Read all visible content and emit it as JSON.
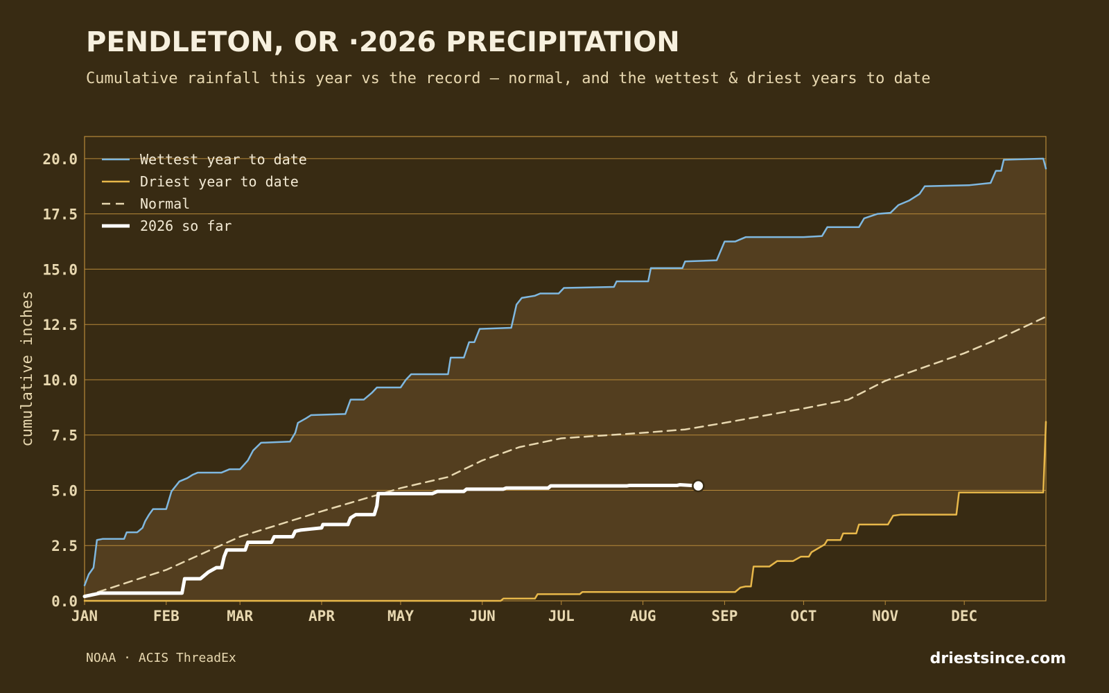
{
  "chart_data": {
    "type": "line",
    "title": "PENDLETON, OR ·2026 PRECIPITATION",
    "subtitle": "Cumulative rainfall this year vs the record — normal, and the wettest & driest years to date",
    "ylabel": "cumulative inches",
    "source": "NOAA · ACIS ThreadEx",
    "site": "driestsince.com",
    "xlim": [
      0,
      365
    ],
    "xticks": [
      {
        "value": 0,
        "label": "JAN"
      },
      {
        "value": 31,
        "label": "FEB"
      },
      {
        "value": 59,
        "label": "MAR"
      },
      {
        "value": 90,
        "label": "APR"
      },
      {
        "value": 120,
        "label": "MAY"
      },
      {
        "value": 151,
        "label": "JUN"
      },
      {
        "value": 181,
        "label": "JUL"
      },
      {
        "value": 212,
        "label": "AUG"
      },
      {
        "value": 243,
        "label": "SEP"
      },
      {
        "value": 273,
        "label": "OCT"
      },
      {
        "value": 304,
        "label": "NOV"
      },
      {
        "value": 334,
        "label": "DEC"
      }
    ],
    "ylim": [
      0,
      21
    ],
    "yticks": [
      {
        "value": 0,
        "label": "0.0"
      },
      2.5,
      {
        "value": 5,
        "label": "5.0"
      },
      7.5,
      {
        "value": 10,
        "label": "10.0"
      },
      12.5,
      {
        "value": 15,
        "label": "15.0"
      },
      17.5,
      {
        "value": 20,
        "label": "20.0"
      }
    ],
    "grid": true,
    "legend": "upper left",
    "range_fill": "#533e1f",
    "series": [
      {
        "name": "Wettest year to date",
        "color": "#7fb8e0",
        "line_style": "solid",
        "line_width": 2.5,
        "x": [
          0,
          1.6,
          3.4,
          4.7,
          6.8,
          15,
          16,
          20,
          22,
          23,
          24.5,
          26,
          31,
          33,
          36,
          39,
          41,
          43,
          52,
          55,
          59,
          62,
          64,
          67,
          78,
          80,
          81,
          84,
          86,
          99,
          101,
          106,
          109,
          111,
          120,
          122,
          124,
          138,
          139,
          144,
          146,
          148,
          150,
          162,
          164,
          166,
          171,
          173,
          180,
          182,
          201,
          202,
          214,
          215,
          227,
          228,
          240,
          243,
          247,
          251,
          273,
          280,
          282,
          294,
          296,
          301,
          306,
          309,
          313,
          317,
          319,
          336,
          344,
          346,
          348,
          349,
          364,
          365
        ],
        "values": [
          0.7,
          1.2,
          1.5,
          2.75,
          2.8,
          2.8,
          3.1,
          3.1,
          3.3,
          3.6,
          3.9,
          4.15,
          4.15,
          4.95,
          5.4,
          5.55,
          5.7,
          5.8,
          5.8,
          5.95,
          5.95,
          6.35,
          6.8,
          7.15,
          7.2,
          7.6,
          8.05,
          8.25,
          8.4,
          8.45,
          9.1,
          9.1,
          9.4,
          9.65,
          9.65,
          10.0,
          10.25,
          10.25,
          11.0,
          11.0,
          11.7,
          11.7,
          12.3,
          12.35,
          13.4,
          13.7,
          13.8,
          13.9,
          13.9,
          14.15,
          14.2,
          14.45,
          14.45,
          15.05,
          15.05,
          15.35,
          15.4,
          16.25,
          16.25,
          16.45,
          16.45,
          16.5,
          16.9,
          16.9,
          17.3,
          17.5,
          17.55,
          17.9,
          18.1,
          18.4,
          18.75,
          18.8,
          18.9,
          19.45,
          19.45,
          19.95,
          20.0,
          19.55
        ]
      },
      {
        "name": "Driest year to date",
        "color": "#e8b84a",
        "line_style": "solid",
        "line_width": 2.5,
        "x": [
          0,
          158,
          159,
          171,
          172,
          188,
          189,
          247,
          249,
          251,
          253,
          254,
          260,
          263,
          269,
          272,
          275,
          276,
          281,
          282,
          287,
          288,
          293,
          294,
          305,
          307,
          310,
          331,
          332,
          364,
          365
        ],
        "values": [
          0,
          0,
          0.1,
          0.1,
          0.3,
          0.3,
          0.4,
          0.4,
          0.6,
          0.65,
          0.65,
          1.55,
          1.55,
          1.8,
          1.8,
          2.0,
          2.0,
          2.2,
          2.55,
          2.75,
          2.75,
          3.05,
          3.05,
          3.45,
          3.45,
          3.85,
          3.9,
          3.9,
          4.9,
          4.9,
          8.1
        ]
      },
      {
        "name": "Normal",
        "color": "#e8d8b0",
        "line_style": "dashed",
        "line_width": 2.5,
        "x": [
          0,
          31,
          59,
          90,
          120,
          138,
          151,
          165,
          181,
          212,
          228,
          243,
          273,
          290,
          304,
          334,
          348,
          365
        ],
        "values": [
          0.2,
          1.4,
          2.9,
          4.05,
          5.1,
          5.6,
          6.35,
          6.95,
          7.35,
          7.6,
          7.75,
          8.05,
          8.7,
          9.1,
          9.95,
          11.2,
          11.9,
          12.85
        ]
      },
      {
        "name": "2026 so far",
        "color": "#ffffff",
        "line_style": "solid",
        "line_width": 5,
        "end_marker": true,
        "x": [
          0,
          4,
          6,
          37,
          38,
          44,
          47,
          50,
          52,
          53,
          54,
          61,
          62,
          71,
          72,
          79,
          80,
          82,
          86,
          90,
          90.5,
          100,
          101,
          103,
          110,
          111,
          111.5,
          132,
          134,
          144,
          145,
          159,
          160,
          176,
          177,
          206,
          207,
          225,
          226,
          233
        ],
        "values": [
          0.2,
          0.3,
          0.35,
          0.35,
          1.0,
          1.0,
          1.3,
          1.5,
          1.5,
          2.0,
          2.3,
          2.3,
          2.65,
          2.65,
          2.9,
          2.9,
          3.15,
          3.2,
          3.25,
          3.3,
          3.45,
          3.45,
          3.75,
          3.9,
          3.9,
          4.3,
          4.85,
          4.85,
          4.95,
          4.95,
          5.05,
          5.05,
          5.1,
          5.1,
          5.2,
          5.2,
          5.22,
          5.22,
          5.25,
          5.2
        ]
      }
    ]
  }
}
